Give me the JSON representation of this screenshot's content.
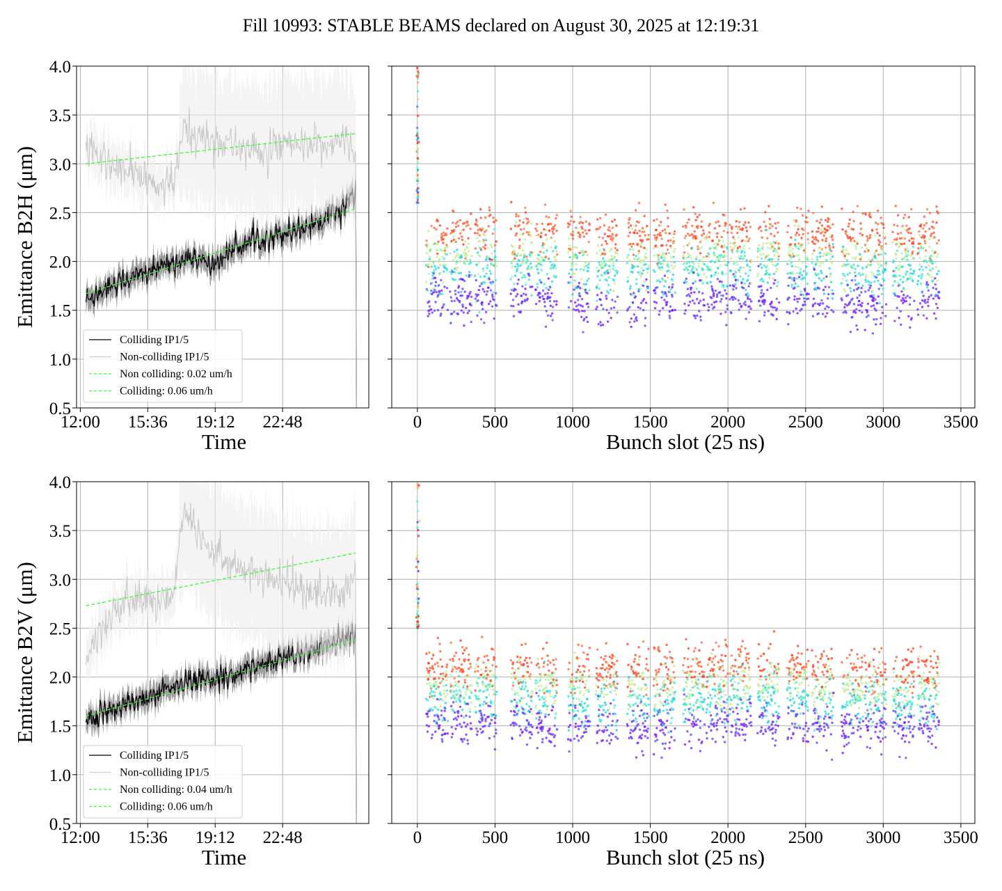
{
  "figure": {
    "suptitle": "Fill 10993: STABLE BEAMS declared on August 30, 2025 at 12:19:31"
  },
  "chart_data": [
    {
      "type": "line",
      "panel": "top-left",
      "xlabel": "Time",
      "ylabel": "Emittance B2H (μm)",
      "xticks": [
        "12:00",
        "15:36",
        "19:12",
        "22:48"
      ],
      "xlim_hours": [
        11.8,
        27.4
      ],
      "ylim": [
        0.5,
        4.0
      ],
      "yticks": [
        0.5,
        1.0,
        1.5,
        2.0,
        2.5,
        3.0,
        3.5,
        4.0
      ],
      "grid": true,
      "legend_position": "lower-left",
      "legend": [
        "Colliding IP1/5",
        "Non-colliding IP1/5",
        "Non colliding: 0.02 um/h",
        "Colliding: 0.06 um/h"
      ],
      "series": [
        {
          "name": "Colliding IP1/5",
          "color": "#000000",
          "band_color": "#7f7f7f",
          "x_hours": [
            12.3,
            13.5,
            15.0,
            16.5,
            18.0,
            19.0,
            20.0,
            21.0,
            22.0,
            23.0,
            24.0,
            25.0,
            26.0,
            26.7
          ],
          "values": [
            1.6,
            1.75,
            1.85,
            1.95,
            2.05,
            1.95,
            2.1,
            2.2,
            2.25,
            2.3,
            2.35,
            2.45,
            2.55,
            2.7
          ]
        },
        {
          "name": "Non-colliding IP1/5",
          "color": "#c8c8c8",
          "band_color": "#ececec",
          "x_hours": [
            12.3,
            13.0,
            14.0,
            15.0,
            16.0,
            17.0,
            17.5,
            18.0,
            19.0,
            20.0,
            21.0,
            22.0,
            23.0,
            24.0,
            25.0,
            26.0,
            26.7
          ],
          "values": [
            3.2,
            3.05,
            2.95,
            2.9,
            2.75,
            2.8,
            3.35,
            3.3,
            3.25,
            3.2,
            3.15,
            3.1,
            3.2,
            3.15,
            3.2,
            3.25,
            3.1
          ]
        },
        {
          "name": "Non colliding: 0.02 um/h",
          "color": "#33ff33",
          "dashed": true,
          "x_hours": [
            12.3,
            26.7
          ],
          "values": [
            3.0,
            3.31
          ]
        },
        {
          "name": "Colliding: 0.06 um/h",
          "color": "#33ff33",
          "dashed": true,
          "x_hours": [
            12.3,
            26.7
          ],
          "values": [
            1.67,
            2.54
          ]
        }
      ]
    },
    {
      "type": "scatter",
      "panel": "top-right",
      "xlabel": "Bunch slot (25 ns)",
      "xlim": [
        -165,
        3590
      ],
      "xticks": [
        0,
        500,
        1000,
        1500,
        2000,
        2500,
        3000,
        3500
      ],
      "ylim": [
        0.5,
        4.0
      ],
      "grid": true,
      "colormap": "rainbow",
      "trains_start": [
        55,
        210,
        370,
        600,
        760,
        970,
        1150,
        1350,
        1520,
        1710,
        1860,
        2010,
        2190,
        2380,
        2540,
        2730,
        2880,
        3060,
        3220
      ],
      "train_length": 140,
      "band_values_blue_to_red": [
        1.6,
        1.9,
        2.05,
        2.3
      ],
      "early_bunch_values": [
        2.6,
        4.0
      ]
    },
    {
      "type": "line",
      "panel": "bottom-left",
      "xlabel": "Time",
      "ylabel": "Emittance B2V (μm)",
      "xticks": [
        "12:00",
        "15:36",
        "19:12",
        "22:48"
      ],
      "xlim_hours": [
        11.8,
        27.4
      ],
      "ylim": [
        0.5,
        4.0
      ],
      "yticks": [
        0.5,
        1.0,
        1.5,
        2.0,
        2.5,
        3.0,
        3.5,
        4.0
      ],
      "grid": true,
      "legend_position": "lower-left",
      "legend": [
        "Colliding IP1/5",
        "Non-colliding IP1/5",
        "Non colliding: 0.04 um/h",
        "Colliding: 0.06 um/h"
      ],
      "series": [
        {
          "name": "Colliding IP1/5",
          "color": "#000000",
          "band_color": "#7f7f7f",
          "x_hours": [
            12.3,
            13.5,
            15.0,
            16.5,
            18.0,
            19.0,
            20.0,
            21.0,
            22.0,
            23.0,
            24.0,
            25.0,
            26.0,
            26.7
          ],
          "values": [
            1.55,
            1.65,
            1.75,
            1.85,
            1.95,
            1.98,
            2.02,
            2.08,
            2.15,
            2.2,
            2.25,
            2.3,
            2.4,
            2.45
          ]
        },
        {
          "name": "Non-colliding IP1/5",
          "color": "#c8c8c8",
          "band_color": "#ececec",
          "x_hours": [
            12.3,
            13.0,
            14.0,
            15.0,
            16.0,
            17.0,
            17.5,
            18.0,
            19.0,
            20.0,
            21.0,
            22.0,
            23.0,
            24.0,
            25.0,
            26.0,
            26.7
          ],
          "values": [
            2.2,
            2.5,
            2.7,
            2.8,
            2.75,
            2.85,
            3.75,
            3.6,
            3.3,
            3.2,
            3.05,
            3.0,
            2.95,
            2.9,
            2.85,
            2.85,
            3.05
          ]
        },
        {
          "name": "Non colliding: 0.04 um/h",
          "color": "#33ff33",
          "dashed": true,
          "x_hours": [
            12.3,
            26.7
          ],
          "values": [
            2.73,
            3.27
          ]
        },
        {
          "name": "Colliding: 0.06 um/h",
          "color": "#33ff33",
          "dashed": true,
          "x_hours": [
            12.3,
            26.7
          ],
          "values": [
            1.6,
            2.38
          ]
        }
      ]
    },
    {
      "type": "scatter",
      "panel": "bottom-right",
      "xlabel": "Bunch slot (25 ns)",
      "xlim": [
        -165,
        3590
      ],
      "xticks": [
        0,
        500,
        1000,
        1500,
        2000,
        2500,
        3000,
        3500
      ],
      "ylim": [
        0.5,
        4.0
      ],
      "grid": true,
      "colormap": "rainbow",
      "trains_start": [
        55,
        210,
        370,
        600,
        760,
        970,
        1150,
        1350,
        1520,
        1710,
        1860,
        2010,
        2190,
        2380,
        2540,
        2730,
        2880,
        3060,
        3220
      ],
      "train_length": 140,
      "band_values_blue_to_red": [
        1.5,
        1.75,
        1.9,
        2.1
      ],
      "early_bunch_values": [
        2.5,
        4.0
      ]
    }
  ]
}
